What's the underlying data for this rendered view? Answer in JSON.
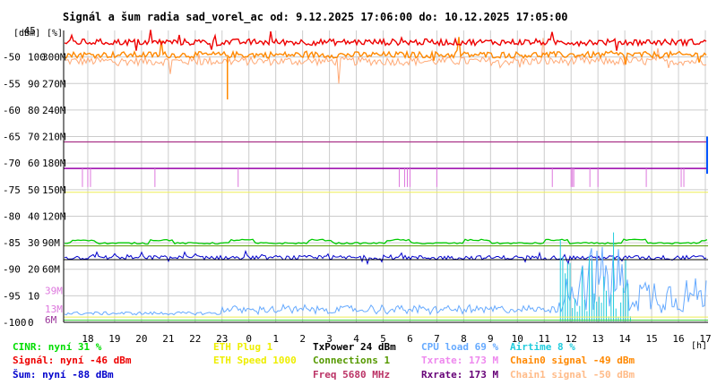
{
  "chart_data": {
    "type": "line",
    "title": "Signál a šum radia sad_vorel_ac od: 9.12.2025 17:06:00 do: 10.12.2025 17:05:00",
    "unit_labels": {
      "dbm": "[dBm]",
      "percent": "[%]",
      "hours": "[h]"
    },
    "y_left_dbm_ticks": [
      "-45",
      "-50",
      "-55",
      "-60",
      "-65",
      "-70",
      "-75",
      "-80",
      "-85",
      "-90",
      "-95",
      "-100"
    ],
    "y_percent_ticks": [
      "100",
      "90",
      "80",
      "70",
      "60",
      "50",
      "40",
      "30",
      "20",
      "10",
      "0"
    ],
    "y_rate_ticks": [
      "300M",
      "270M",
      "240M",
      "210M",
      "180M",
      "150M",
      "120M",
      "90M",
      "60M"
    ],
    "low_rate_ticks": [
      {
        "text": "39M",
        "color": "#dd77dd"
      },
      {
        "text": "13M",
        "color": "#dd77dd"
      },
      {
        "text": "6M",
        "color": "#993399"
      }
    ],
    "x_ticks": [
      "18",
      "19",
      "20",
      "21",
      "22",
      "23",
      "0",
      "1",
      "2",
      "3",
      "4",
      "5",
      "6",
      "7",
      "8",
      "9",
      "10",
      "11",
      "12",
      "13",
      "14",
      "15",
      "16",
      "17"
    ],
    "ylim_dbm": [
      -100,
      -45
    ],
    "xlim_hours": [
      17.1,
      41.1
    ],
    "grid": true,
    "series": [
      {
        "name": "Signál",
        "color": "#ee0000",
        "unit": "dBm",
        "typical": -47
      },
      {
        "name": "Chain0 signal",
        "color": "#ff8800",
        "unit": "dBm",
        "typical": -49.5
      },
      {
        "name": "Chain1 signal",
        "color": "#ffaa77",
        "unit": "dBm",
        "typical": -50.5
      },
      {
        "name": "Šum",
        "color": "#0000cc",
        "unit": "dBm",
        "typical": -88
      },
      {
        "name": "CINR",
        "color": "#00cc00",
        "unit": "%",
        "typical": 31
      },
      {
        "name": "Txrate",
        "color": "#9900aa",
        "unit": "Mbit",
        "typical": 173
      },
      {
        "name": "Rxrate",
        "color": "#aa3388",
        "unit": "Mbit",
        "typical": 216
      },
      {
        "name": "Connections",
        "color": "#559900",
        "unit": "count",
        "typical": 1
      },
      {
        "name": "ETH Plug",
        "color": "#eeee00",
        "unit": "",
        "typical": 1
      },
      {
        "name": "CPU load",
        "color": "#66aaff",
        "unit": "%",
        "typical": 8
      },
      {
        "name": "Airtime",
        "color": "#22ccdd",
        "unit": "%",
        "typical": 2
      }
    ]
  },
  "legend": {
    "col1": [
      {
        "text": "CINR: nyní 31 %",
        "color": "#00dd00"
      },
      {
        "text": "Signál: nyní -46 dBm",
        "color": "#ee0000"
      },
      {
        "text": "Šum: nyní -88 dBm",
        "color": "#0000cc"
      }
    ],
    "col2": [
      {
        "text": "ETH Plug 1",
        "color": "#eeee00"
      },
      {
        "text": "ETH Speed 1000",
        "color": "#eeee00"
      }
    ],
    "col3": [
      {
        "text": "TxPower 24 dBm",
        "color": "#000000"
      },
      {
        "text": "Connections 1",
        "color": "#559900"
      },
      {
        "text": "Freq 5680 MHz",
        "color": "#bb3366"
      }
    ],
    "col4": [
      {
        "text": "CPU load 69 %",
        "color": "#66aaff"
      },
      {
        "text": "Txrate: 173 M",
        "color": "#ee88ee"
      },
      {
        "text": "Rxrate: 173 M",
        "color": "#660077"
      }
    ],
    "col5": [
      {
        "text": "Airtime 8 %",
        "color": "#22ccdd"
      },
      {
        "text": "Chain0 signal -49 dBm",
        "color": "#ff8800"
      },
      {
        "text": "Chain1 signal -50 dBm",
        "color": "#ffbb88"
      }
    ]
  }
}
